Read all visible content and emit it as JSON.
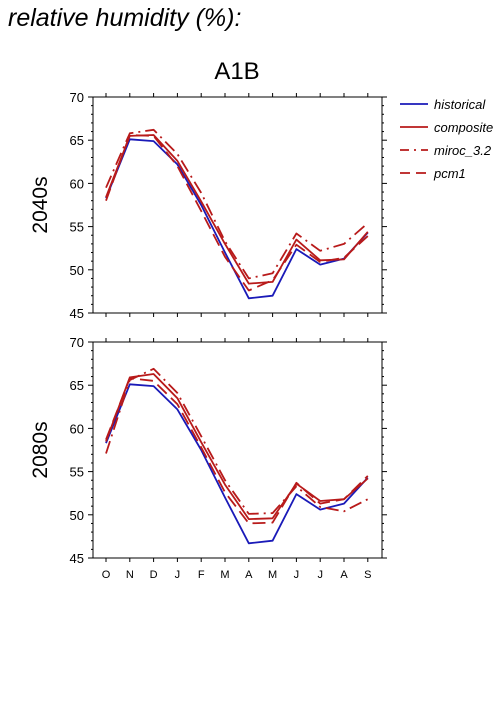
{
  "page_title": "relative humidity (%):",
  "colors": {
    "historical": "#1a1ab8",
    "scenario": "#b81a1a",
    "axis": "#000000"
  },
  "chart_data": {
    "type": "line",
    "title": "A1B",
    "xlabel": "",
    "ylabel": "",
    "ylim": [
      45,
      70
    ],
    "yticks": [
      45,
      50,
      55,
      60,
      65,
      70
    ],
    "categories": [
      "O",
      "N",
      "D",
      "J",
      "F",
      "M",
      "A",
      "M",
      "J",
      "J",
      "A",
      "S"
    ],
    "legend": {
      "position": "right",
      "entries": [
        "historical",
        "composite",
        "miroc_3.2",
        "pcm1"
      ]
    },
    "panels": [
      {
        "label": "2040s",
        "series": [
          {
            "name": "historical",
            "style": "solid",
            "color": "#1a1ab8",
            "values": [
              58.3,
              65.1,
              64.9,
              62.2,
              57.5,
              52.0,
              46.7,
              47.0,
              52.4,
              50.6,
              51.3,
              54.3
            ]
          },
          {
            "name": "composite",
            "style": "solid",
            "color": "#b81a1a",
            "values": [
              58.4,
              65.5,
              65.6,
              62.6,
              57.9,
              53.0,
              48.4,
              48.6,
              53.5,
              51.1,
              51.2,
              54.4
            ]
          },
          {
            "name": "miroc_3.2",
            "style": "dashdot",
            "color": "#b81a1a",
            "values": [
              59.5,
              65.8,
              66.2,
              63.4,
              58.9,
              53.3,
              49.0,
              49.6,
              54.2,
              52.2,
              53.0,
              55.4
            ]
          },
          {
            "name": "pcm1",
            "style": "dashed",
            "color": "#b81a1a",
            "values": [
              58.0,
              65.6,
              65.5,
              62.0,
              56.8,
              51.5,
              47.6,
              48.8,
              52.9,
              50.9,
              51.4,
              53.9
            ]
          }
        ]
      },
      {
        "label": "2080s",
        "series": [
          {
            "name": "historical",
            "style": "solid",
            "color": "#1a1ab8",
            "values": [
              58.3,
              65.1,
              64.9,
              62.2,
              57.5,
              52.0,
              46.7,
              47.0,
              52.4,
              50.6,
              51.3,
              54.3
            ]
          },
          {
            "name": "composite",
            "style": "solid",
            "color": "#b81a1a",
            "values": [
              58.5,
              65.9,
              66.3,
              63.5,
              58.4,
              53.5,
              49.5,
              49.6,
              53.6,
              51.6,
              51.8,
              54.2
            ]
          },
          {
            "name": "miroc_3.2",
            "style": "dashdot",
            "color": "#b81a1a",
            "values": [
              57.1,
              65.6,
              66.9,
              64.1,
              59.1,
              54.0,
              50.1,
              50.2,
              53.3,
              50.9,
              50.4,
              51.8
            ]
          },
          {
            "name": "pcm1",
            "style": "dashed",
            "color": "#b81a1a",
            "values": [
              58.7,
              65.8,
              65.5,
              62.8,
              57.8,
              52.6,
              49.0,
              49.1,
              53.7,
              51.3,
              51.8,
              54.5
            ]
          }
        ]
      }
    ]
  }
}
